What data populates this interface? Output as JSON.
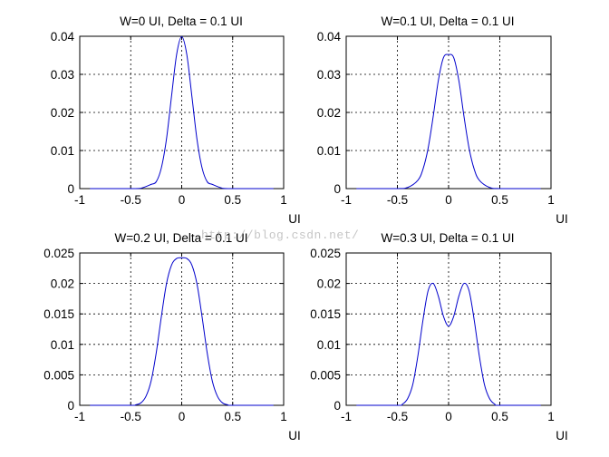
{
  "watermark": "http://blog.csdn.net/",
  "colors": {
    "line": "#0000cc",
    "grid": "#000000",
    "axes": "#000000"
  },
  "chart_data": [
    {
      "type": "line",
      "title": "W=0 UI, Delta = 0.1 UI",
      "xlabel": "UI",
      "ylabel": "",
      "xlim": [
        -1,
        1
      ],
      "ylim": [
        0,
        0.04
      ],
      "xticks": [
        -1,
        -0.5,
        0,
        0.5,
        1
      ],
      "xtick_labels": [
        "-1",
        "-0.5",
        "0",
        "0.5",
        "1"
      ],
      "yticks": [
        0,
        0.01,
        0.02,
        0.03,
        0.04
      ],
      "ytick_labels": [
        "0",
        "0.01",
        "0.02",
        "0.03",
        "0.04"
      ],
      "grid": true,
      "x": [
        -0.9,
        -0.5,
        -0.4,
        -0.3,
        -0.25,
        -0.2,
        -0.15,
        -0.1,
        -0.05,
        0,
        0.05,
        0.1,
        0.15,
        0.2,
        0.25,
        0.3,
        0.4,
        0.5,
        0.9
      ],
      "y": [
        0,
        0,
        0.0001,
        0.0011,
        0.0018,
        0.0054,
        0.0129,
        0.0242,
        0.0352,
        0.0399,
        0.0352,
        0.0242,
        0.0129,
        0.0054,
        0.0018,
        0.0011,
        0.0001,
        0,
        0
      ]
    },
    {
      "type": "line",
      "title": "W=0.1 UI, Delta = 0.1 UI",
      "xlabel": "UI",
      "ylabel": "",
      "xlim": [
        -1,
        1
      ],
      "ylim": [
        0,
        0.04
      ],
      "xticks": [
        -1,
        -0.5,
        0,
        0.5,
        1
      ],
      "xtick_labels": [
        "-1",
        "-0.5",
        "0",
        "0.5",
        "1"
      ],
      "yticks": [
        0,
        0.01,
        0.02,
        0.03,
        0.04
      ],
      "ytick_labels": [
        "0",
        "0.01",
        "0.02",
        "0.03",
        "0.04"
      ],
      "grid": true,
      "x": [
        -0.9,
        -0.5,
        -0.4,
        -0.3,
        -0.25,
        -0.2,
        -0.15,
        -0.1,
        -0.05,
        0,
        0.05,
        0.1,
        0.15,
        0.2,
        0.25,
        0.3,
        0.4,
        0.5,
        0.9
      ],
      "y": [
        0,
        0,
        0.0003,
        0.0022,
        0.0051,
        0.0106,
        0.019,
        0.0284,
        0.0344,
        0.0352,
        0.0344,
        0.0284,
        0.019,
        0.0106,
        0.0051,
        0.0022,
        0.0003,
        0,
        0
      ]
    },
    {
      "type": "line",
      "title": "W=0.2 UI, Delta = 0.1 UI",
      "xlabel": "UI",
      "ylabel": "",
      "xlim": [
        -1,
        1
      ],
      "ylim": [
        0,
        0.025
      ],
      "xticks": [
        -1,
        -0.5,
        0,
        0.5,
        1
      ],
      "xtick_labels": [
        "-1",
        "-0.5",
        "0",
        "0.5",
        "1"
      ],
      "yticks": [
        0,
        0.005,
        0.01,
        0.015,
        0.02,
        0.025
      ],
      "ytick_labels": [
        "0",
        "0.005",
        "0.01",
        "0.015",
        "0.02",
        "0.025"
      ],
      "grid": true,
      "x": [
        -0.9,
        -0.5,
        -0.45,
        -0.4,
        -0.35,
        -0.3,
        -0.25,
        -0.2,
        -0.15,
        -0.1,
        -0.05,
        0,
        0.05,
        0.1,
        0.15,
        0.2,
        0.25,
        0.3,
        0.35,
        0.4,
        0.45,
        0.5,
        0.9
      ],
      "y": [
        0,
        0,
        0.0001,
        0.0004,
        0.0015,
        0.004,
        0.0086,
        0.0145,
        0.0199,
        0.023,
        0.0241,
        0.0242,
        0.0241,
        0.023,
        0.0199,
        0.0145,
        0.0086,
        0.004,
        0.0015,
        0.0004,
        0.0001,
        0,
        0
      ]
    },
    {
      "type": "line",
      "title": "W=0.3 UI, Delta = 0.1 UI",
      "xlabel": "UI",
      "ylabel": "",
      "xlim": [
        -1,
        1
      ],
      "ylim": [
        0,
        0.025
      ],
      "xticks": [
        -1,
        -0.5,
        0,
        0.5,
        1
      ],
      "xtick_labels": [
        "-1",
        "-0.5",
        "0",
        "0.5",
        "1"
      ],
      "yticks": [
        0,
        0.005,
        0.01,
        0.015,
        0.02,
        0.025
      ],
      "ytick_labels": [
        "0",
        "0.005",
        "0.01",
        "0.015",
        "0.02",
        "0.025"
      ],
      "grid": true,
      "x": [
        -0.9,
        -0.5,
        -0.45,
        -0.4,
        -0.35,
        -0.3,
        -0.25,
        -0.2,
        -0.15,
        -0.1,
        -0.05,
        0,
        0.05,
        0.1,
        0.15,
        0.2,
        0.25,
        0.3,
        0.35,
        0.4,
        0.45,
        0.5,
        0.9
      ],
      "y": [
        0,
        0,
        0.0002,
        0.0011,
        0.0034,
        0.0081,
        0.014,
        0.0188,
        0.02,
        0.0179,
        0.0146,
        0.013,
        0.0146,
        0.0179,
        0.02,
        0.0188,
        0.014,
        0.0081,
        0.0034,
        0.0011,
        0.0002,
        0,
        0
      ]
    }
  ]
}
